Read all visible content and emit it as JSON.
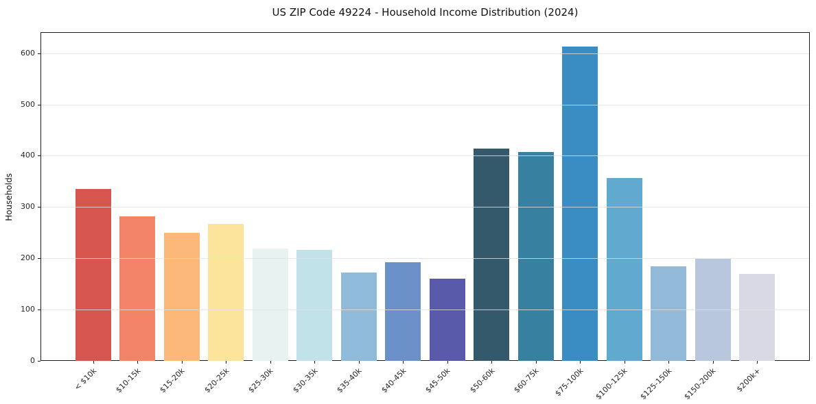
{
  "title": "US ZIP Code 49224 - Household Income Distribution (2024)",
  "chart_data": {
    "type": "bar",
    "title": "US ZIP Code 49224 - Household Income Distribution (2024)",
    "xlabel": "",
    "ylabel": "Households",
    "ylim": [
      0,
      641
    ],
    "yticks": [
      0,
      100,
      200,
      300,
      400,
      500,
      600
    ],
    "grid": "horizontal-light-on-top",
    "legend": "none",
    "categories": [
      "< $10k",
      "$10-15k",
      "$15-20k",
      "$20-25k",
      "$25-30k",
      "$30-35k",
      "$35-40k",
      "$40-45k",
      "$45-50k",
      "$50-60k",
      "$60-75k",
      "$75-100k",
      "$100-125k",
      "$125-150k",
      "$150-200k",
      "$200k+"
    ],
    "values": [
      335,
      282,
      250,
      267,
      219,
      216,
      172,
      192,
      160,
      414,
      407,
      613,
      357,
      184,
      199,
      170
    ],
    "bar_colors": [
      "#d6564f",
      "#f28567",
      "#fbb878",
      "#fce49d",
      "#e7f2f1",
      "#c2e2ea",
      "#90bad9",
      "#6b91c8",
      "#5a5aab",
      "#34596b",
      "#38809f",
      "#3a8dc3",
      "#61a9ce",
      "#93b9d9",
      "#b8c7de",
      "#d9d9e6"
    ],
    "axis_color": "#1a1a1a",
    "background_color": "#ffffff"
  }
}
